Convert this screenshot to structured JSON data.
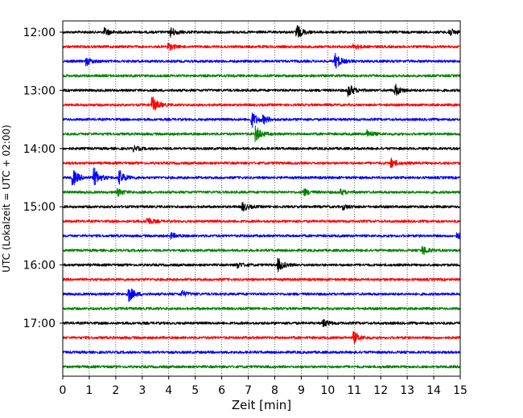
{
  "chart_data": {
    "type": "line",
    "title": "",
    "xlabel": "Zeit  [min]",
    "ylabel": "UTC (Lokalzeit = UTC + 02:00)",
    "xlim": [
      0,
      15
    ],
    "x_ticks": [
      "0",
      "1",
      "2",
      "3",
      "4",
      "5",
      "6",
      "7",
      "8",
      "9",
      "10",
      "11",
      "12",
      "13",
      "14",
      "15"
    ],
    "y_ticks": [
      "12:00",
      "13:00",
      "14:00",
      "15:00",
      "16:00",
      "17:00"
    ],
    "grid": "vertical dotted at each minute",
    "row_colors": [
      "#000000",
      "#ff0000",
      "#0000ff",
      "#008000"
    ],
    "rows": [
      {
        "start": "12:00",
        "color": "#000000",
        "events": [
          {
            "t": 1.6,
            "amp": 0.5
          },
          {
            "t": 4.1,
            "amp": 0.6
          },
          {
            "t": 8.85,
            "amp": 0.9
          },
          {
            "t": 14.6,
            "amp": 0.5
          }
        ]
      },
      {
        "start": "12:15",
        "color": "#ff0000",
        "events": [
          {
            "t": 4.0,
            "amp": 0.45
          },
          {
            "t": 11.0,
            "amp": 0.35
          }
        ]
      },
      {
        "start": "12:30",
        "color": "#0000ff",
        "events": [
          {
            "t": 0.9,
            "amp": 0.5
          },
          {
            "t": 10.3,
            "amp": 1.0
          }
        ]
      },
      {
        "start": "12:45",
        "color": "#008000",
        "events": []
      },
      {
        "start": "13:00",
        "color": "#000000",
        "events": [
          {
            "t": 10.8,
            "amp": 0.85
          },
          {
            "t": 12.55,
            "amp": 0.8
          }
        ]
      },
      {
        "start": "13:15",
        "color": "#ff0000",
        "events": [
          {
            "t": 3.4,
            "amp": 1.0
          }
        ]
      },
      {
        "start": "13:30",
        "color": "#0000ff",
        "events": [
          {
            "t": 7.15,
            "amp": 1.0
          },
          {
            "t": 7.6,
            "amp": 0.4
          }
        ]
      },
      {
        "start": "13:45",
        "color": "#008000",
        "events": [
          {
            "t": 7.3,
            "amp": 1.0
          },
          {
            "t": 11.5,
            "amp": 0.5
          }
        ]
      },
      {
        "start": "14:00",
        "color": "#000000",
        "events": [
          {
            "t": 2.7,
            "amp": 0.3
          }
        ]
      },
      {
        "start": "14:15",
        "color": "#ff0000",
        "events": [
          {
            "t": 12.4,
            "amp": 0.6
          }
        ]
      },
      {
        "start": "14:30",
        "color": "#0000ff",
        "events": [
          {
            "t": 0.4,
            "amp": 1.0
          },
          {
            "t": 1.2,
            "amp": 1.2
          },
          {
            "t": 2.15,
            "amp": 0.9
          }
        ]
      },
      {
        "start": "14:45",
        "color": "#008000",
        "events": [
          {
            "t": 2.1,
            "amp": 0.45
          },
          {
            "t": 9.1,
            "amp": 0.45
          },
          {
            "t": 10.5,
            "amp": 0.35
          }
        ]
      },
      {
        "start": "15:00",
        "color": "#000000",
        "events": [
          {
            "t": 6.8,
            "amp": 0.55
          },
          {
            "t": 10.6,
            "amp": 0.3
          }
        ]
      },
      {
        "start": "15:15",
        "color": "#ff0000",
        "events": [
          {
            "t": 3.2,
            "amp": 0.5
          }
        ]
      },
      {
        "start": "15:30",
        "color": "#0000ff",
        "events": [
          {
            "t": 4.1,
            "amp": 0.35
          },
          {
            "t": 14.9,
            "amp": 0.35
          }
        ]
      },
      {
        "start": "15:45",
        "color": "#008000",
        "events": [
          {
            "t": 13.6,
            "amp": 0.55
          }
        ]
      },
      {
        "start": "16:00",
        "color": "#000000",
        "events": [
          {
            "t": 6.6,
            "amp": 0.35
          },
          {
            "t": 8.15,
            "amp": 0.8
          }
        ]
      },
      {
        "start": "16:15",
        "color": "#ff0000",
        "events": []
      },
      {
        "start": "16:30",
        "color": "#0000ff",
        "events": [
          {
            "t": 2.5,
            "amp": 1.0
          },
          {
            "t": 4.5,
            "amp": 0.4
          }
        ]
      },
      {
        "start": "16:45",
        "color": "#008000",
        "events": []
      },
      {
        "start": "17:00",
        "color": "#000000",
        "events": [
          {
            "t": 9.85,
            "amp": 0.45
          }
        ]
      },
      {
        "start": "17:15",
        "color": "#ff0000",
        "events": [
          {
            "t": 11.0,
            "amp": 0.75
          }
        ]
      },
      {
        "start": "17:30",
        "color": "#0000ff",
        "events": []
      },
      {
        "start": "17:45",
        "color": "#008000",
        "events": []
      }
    ]
  }
}
